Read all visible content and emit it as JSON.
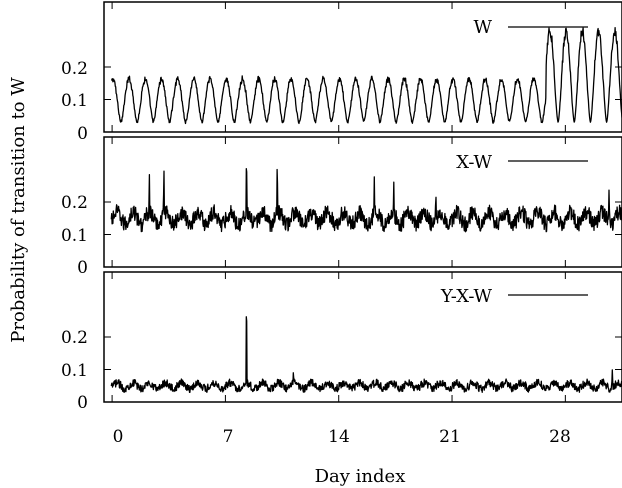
{
  "chart_data": [
    {
      "type": "line",
      "panel": "top",
      "series": [
        {
          "name": "W",
          "period_days": 1,
          "typical_min": 0.03,
          "typical_max": 0.17,
          "large_amplitude_from_day": 26.8,
          "large_amplitude_max": 0.33
        }
      ],
      "ylim": [
        0,
        0.4
      ],
      "yticks": [
        0,
        0.1,
        0.2
      ],
      "ytick_labels": [
        "0",
        "0.1",
        "0.2"
      ],
      "legend_position": "top-right"
    },
    {
      "type": "line",
      "panel": "middle",
      "series": [
        {
          "name": "X-W",
          "baseline": 0.15,
          "noise": 0.03,
          "spikes": [
            [
              2.3,
              0.3
            ],
            [
              3.2,
              0.32
            ],
            [
              8.3,
              0.38
            ],
            [
              10.2,
              0.35
            ],
            [
              16.2,
              0.28
            ],
            [
              17.4,
              0.27
            ],
            [
              20.0,
              0.23
            ],
            [
              30.7,
              0.24
            ]
          ]
        }
      ],
      "ylim": [
        0,
        0.4
      ],
      "yticks": [
        0,
        0.1,
        0.2
      ],
      "ytick_labels": [
        "0",
        "0.1",
        "0.2"
      ],
      "legend_position": "top-right"
    },
    {
      "type": "line",
      "panel": "bottom",
      "series": [
        {
          "name": "Y-X-W",
          "baseline": 0.05,
          "noise": 0.015,
          "spikes": [
            [
              8.3,
              0.37
            ],
            [
              11.2,
              0.1
            ],
            [
              30.9,
              0.1
            ]
          ]
        }
      ],
      "ylim": [
        0,
        0.4
      ],
      "yticks": [
        0,
        0.1,
        0.2
      ],
      "ytick_labels": [
        "0",
        "0.1",
        "0.2"
      ],
      "xlim": [
        -0.5,
        31.5
      ],
      "xticks": [
        0,
        7,
        14,
        21,
        28
      ],
      "xtick_labels": [
        "0",
        "7",
        "14",
        "21",
        "28"
      ],
      "legend_position": "top-right"
    }
  ],
  "labels": {
    "xlabel": "Day index",
    "ylabel": "Probability of transition to W"
  }
}
